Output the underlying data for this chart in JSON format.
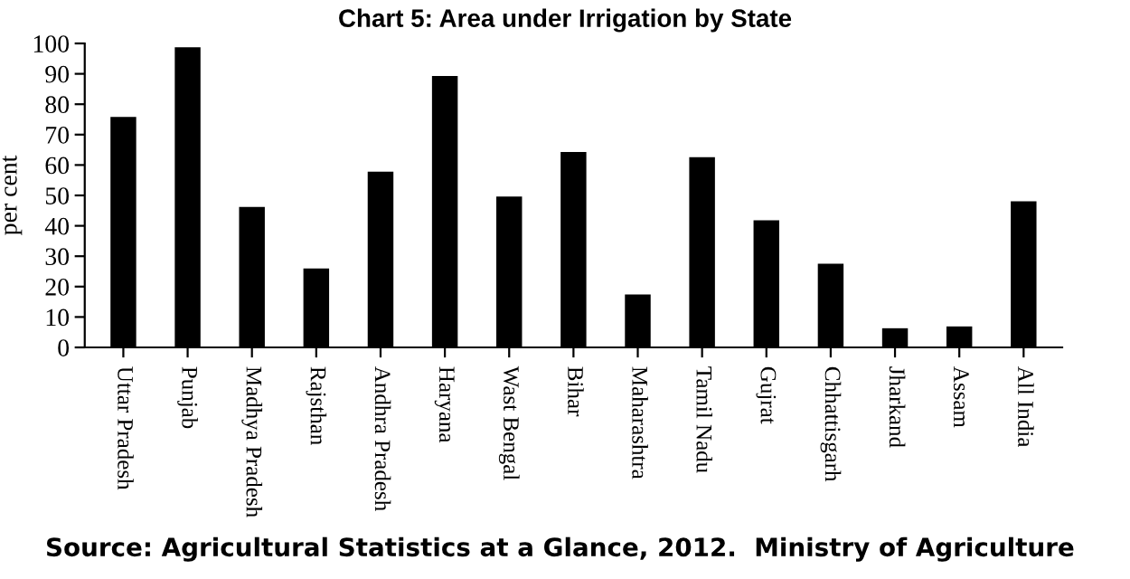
{
  "chart_data": {
    "type": "bar",
    "title": "Chart 5: Area under Irrigation by State",
    "ylabel": "per cent",
    "categories": [
      "Uttar Pradesh",
      "Punjab",
      "Madhya Pradesh",
      "Rajsthan",
      "Andhra Pradesh",
      "Haryana",
      "Wast Bengal",
      "Bihar",
      "Maharashtra",
      "Tamil Nadu",
      "Gujrat",
      "Chhattisgarh",
      "Jharkand",
      "Assam",
      "All India"
    ],
    "values": [
      75.8,
      98.7,
      46.2,
      26,
      57.8,
      89.3,
      49.6,
      64.3,
      17.4,
      62.6,
      41.8,
      27.5,
      6.3,
      6.9,
      48.1
    ],
    "color": "#000000",
    "ylim": [
      0,
      100
    ],
    "yticks": [
      0,
      10,
      20,
      30,
      40,
      50,
      60,
      70,
      80,
      90,
      100
    ],
    "grid": false,
    "annotations": [
      "Source: Agricultural Statistics at a Glance, 2012.  Ministry of Agriculture"
    ]
  }
}
